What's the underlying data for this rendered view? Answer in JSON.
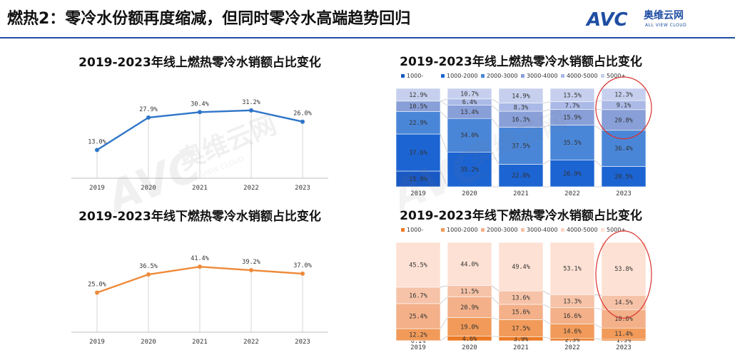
{
  "page": {
    "title": "燃热2：零冷水份额再度缩减，但同时零冷水高端趋势回归",
    "logo": {
      "mark": "AVC",
      "cn": "奥维云网",
      "sub": "ALL VIEW CLOUD"
    },
    "watermark": {
      "mark": "AVC",
      "cn": "奥维云网",
      "sub": "ALL VIEW CLOUD"
    }
  },
  "colors": {
    "accent": "#1f4ea3",
    "online_line": "#2e75c8",
    "offline_line": "#ee8a3a",
    "online_bands": [
      "#1959c4",
      "#1c64d2",
      "#4a86d8",
      "#889fd8",
      "#aab9e6",
      "#c6d0ee"
    ],
    "offline_bands": [
      "#ec7a25",
      "#f19a59",
      "#f3b089",
      "#f6c3a8",
      "#fad5c4",
      "#fde1d4"
    ]
  },
  "chart_data": [
    {
      "type": "line",
      "title": "2019-2023年线上燃热零冷水销额占比变化",
      "x": [
        "2019",
        "2020",
        "2021",
        "2022",
        "2023"
      ],
      "series": [
        {
          "values": [
            13.0,
            27.9,
            30.4,
            31.2,
            26.0
          ],
          "labels": [
            "13.0%",
            "27.9%",
            "30.4%",
            "31.2%",
            "26.0%"
          ]
        }
      ],
      "ylim": [
        0,
        40
      ],
      "grid": true,
      "legend": "none"
    },
    {
      "type": "line",
      "title": "2019-2023年线下燃热零冷水销额占比变化",
      "x": [
        "2019",
        "2020",
        "2021",
        "2022",
        "2023"
      ],
      "series": [
        {
          "values": [
            25.0,
            36.5,
            41.4,
            39.2,
            37.0
          ],
          "labels": [
            "25.0%",
            "36.5%",
            "41.4%",
            "39.2%",
            "37.0%"
          ]
        }
      ],
      "ylim": [
        0,
        55
      ],
      "grid": true,
      "legend": "none"
    },
    {
      "type": "bar",
      "stacked": true,
      "title": "2019-2023年线上燃热零冷水销额占比变化",
      "categories": [
        "2019",
        "2020",
        "2021",
        "2022",
        "2023"
      ],
      "series": [
        {
          "name": "1000-",
          "values": [
            15.9,
            0.0,
            0.0,
            0.0,
            0.0
          ],
          "labels": [
            "15.9%",
            "",
            "",
            "",
            ""
          ]
        },
        {
          "name": "1000-2000",
          "values": [
            37.6,
            35.2,
            22.8,
            26.9,
            20.5
          ],
          "labels": [
            "37.6%",
            "35.2%",
            "22.8%",
            "26.9%",
            "20.5%"
          ]
        },
        {
          "name": "2000-3000",
          "values": [
            22.9,
            34.0,
            37.5,
            35.5,
            36.4
          ],
          "labels": [
            "22.9%",
            "34.0%",
            "37.5%",
            "35.5%",
            "36.4%"
          ]
        },
        {
          "name": "3000-4000",
          "values": [
            10.5,
            13.4,
            16.3,
            15.9,
            20.8
          ],
          "labels": [
            "10.5%",
            "13.4%",
            "16.3%",
            "15.9%",
            "20.8%"
          ]
        },
        {
          "name": "4000-5000",
          "values": [
            0.0,
            6.4,
            8.3,
            7.7,
            9.1
          ],
          "labels": [
            "",
            "6.4%",
            "8.3%",
            "7.7%",
            "9.1%"
          ]
        },
        {
          "name": "5000+",
          "values": [
            12.9,
            10.7,
            14.9,
            13.5,
            12.3
          ],
          "labels": [
            "12.9%",
            "10.7%",
            "14.9%",
            "13.5%",
            "12.3%"
          ]
        }
      ],
      "ylim": [
        0,
        100
      ],
      "legend": "top",
      "highlight": "2023"
    },
    {
      "type": "bar",
      "stacked": true,
      "title": "2019-2023年线下燃热零冷水销额占比变化",
      "categories": [
        "2019",
        "2020",
        "2021",
        "2022",
        "2023"
      ],
      "series": [
        {
          "name": "1000-",
          "values": [
            0.1,
            4.6,
            3.9,
            2.3,
            1.5
          ],
          "labels": [
            "0.1%",
            "4.6%",
            "3.9%",
            "2.3%",
            "1.5%"
          ]
        },
        {
          "name": "1000-2000",
          "values": [
            12.2,
            19.0,
            17.5,
            14.6,
            11.4
          ],
          "labels": [
            "12.2%",
            "19.0%",
            "17.5%",
            "14.6%",
            "11.4%"
          ]
        },
        {
          "name": "2000-3000",
          "values": [
            25.4,
            20.9,
            15.6,
            16.6,
            18.8
          ],
          "labels": [
            "25.4%",
            "20.9%",
            "15.6%",
            "16.6%",
            "18.8%"
          ]
        },
        {
          "name": "3000-4000",
          "values": [
            16.7,
            11.5,
            13.6,
            13.3,
            14.5
          ],
          "labels": [
            "16.7%",
            "11.5%",
            "13.6%",
            "13.3%",
            "14.5%"
          ]
        },
        {
          "name": "4000-5000",
          "values": [
            0.0,
            0.0,
            0.0,
            0.0,
            0.0
          ],
          "labels": [
            "",
            "",
            "",
            "",
            ""
          ]
        },
        {
          "name": "5000+",
          "values": [
            45.5,
            44.0,
            49.4,
            53.1,
            53.8
          ],
          "labels": [
            "45.5%",
            "44.0%",
            "49.4%",
            "53.1%",
            "53.8%"
          ]
        }
      ],
      "ylim": [
        0,
        100
      ],
      "legend": "top",
      "highlight": "2023"
    }
  ]
}
